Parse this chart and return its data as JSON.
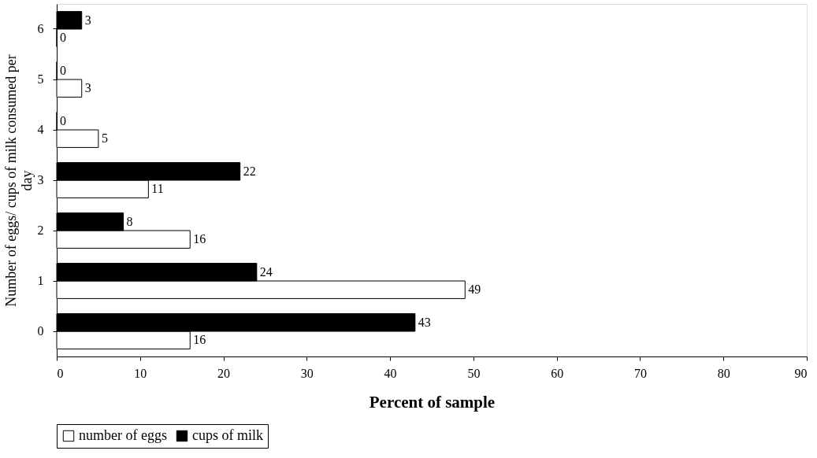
{
  "chart_data": {
    "type": "bar",
    "orientation": "horizontal",
    "xlabel": "Percent of sample",
    "ylabel": "Number of eggs/ cups of milk consumed per day",
    "categories": [
      "6",
      "5",
      "4",
      "3",
      "2",
      "1",
      "0"
    ],
    "series": [
      {
        "name": "number of eggs",
        "color": "#ffffff",
        "values": [
          0,
          3,
          5,
          11,
          16,
          49,
          16
        ]
      },
      {
        "name": "cups of milk",
        "color": "#000000",
        "values": [
          3,
          0,
          0,
          22,
          8,
          24,
          43
        ]
      }
    ],
    "xlim": [
      0,
      90
    ],
    "xticks": [
      0,
      10,
      20,
      30,
      40,
      50,
      60,
      70,
      80,
      90
    ],
    "grid": false,
    "legend": "bottom",
    "data_labels": true
  }
}
